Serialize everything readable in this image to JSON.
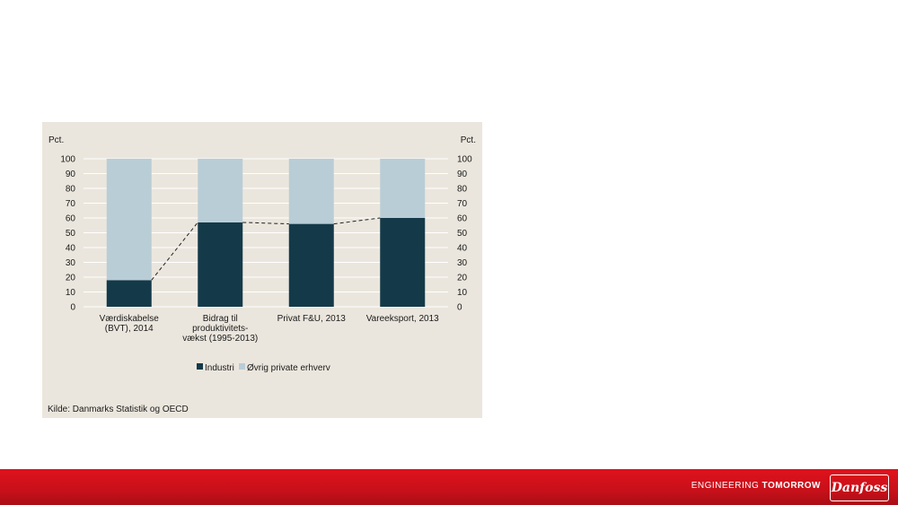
{
  "colors": {
    "industri": "#143a4a",
    "ovrig": "#b9cdd6",
    "background_panel": "#ebe6dd",
    "footer": "#d0121b"
  },
  "chart_data": {
    "type": "bar",
    "stacked": true,
    "left_axis_unit": "Pct.",
    "right_axis_unit": "Pct.",
    "ylim": [
      0,
      100
    ],
    "yticks": [
      0,
      10,
      20,
      30,
      40,
      50,
      60,
      70,
      80,
      90,
      100
    ],
    "categories": [
      [
        "Værdiskabelse",
        "(BVT), 2014"
      ],
      [
        "Bidrag til",
        "produktivitets-",
        "vækst (1995-2013)"
      ],
      [
        "Privat F&U, 2013"
      ],
      [
        "Vareeksport, 2013"
      ]
    ],
    "series": [
      {
        "name": "Industri",
        "values": [
          18,
          57,
          56,
          60
        ]
      },
      {
        "name": "Øvrig private erhverv",
        "values": [
          82,
          43,
          44,
          40
        ]
      }
    ],
    "dashed_line_values": [
      18,
      57,
      56,
      60
    ],
    "grid": true,
    "legend_position": "bottom",
    "source": "Kilde: Danmarks Statistik og OECD"
  },
  "footer": {
    "tagline_part1": "ENGINEERING",
    "tagline_part2": "TOMORROW",
    "logo_text": "Danfoss"
  }
}
